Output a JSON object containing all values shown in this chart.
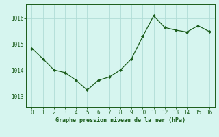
{
  "x": [
    0,
    1,
    2,
    3,
    4,
    5,
    6,
    7,
    8,
    9,
    10,
    11,
    12,
    13,
    14,
    15,
    16
  ],
  "y": [
    1014.85,
    1014.45,
    1014.02,
    1013.92,
    1013.62,
    1013.25,
    1013.62,
    1013.75,
    1014.02,
    1014.45,
    1015.3,
    1016.1,
    1015.65,
    1015.55,
    1015.48,
    1015.72,
    1015.5
  ],
  "line_color": "#1a5c1a",
  "marker_color": "#1a5c1a",
  "bg_color": "#d6f5ef",
  "grid_color": "#b0ddd6",
  "xlabel": "Graphe pression niveau de la mer (hPa)",
  "xlabel_color": "#1a5c1a",
  "tick_color": "#1a5c1a",
  "ylim_min": 1012.6,
  "ylim_max": 1016.55,
  "yticks": [
    1013,
    1014,
    1015,
    1016
  ],
  "xticks": [
    0,
    1,
    2,
    3,
    4,
    5,
    6,
    7,
    8,
    9,
    10,
    11,
    12,
    13,
    14,
    15,
    16
  ],
  "figsize": [
    3.2,
    2.0
  ],
  "dpi": 100
}
